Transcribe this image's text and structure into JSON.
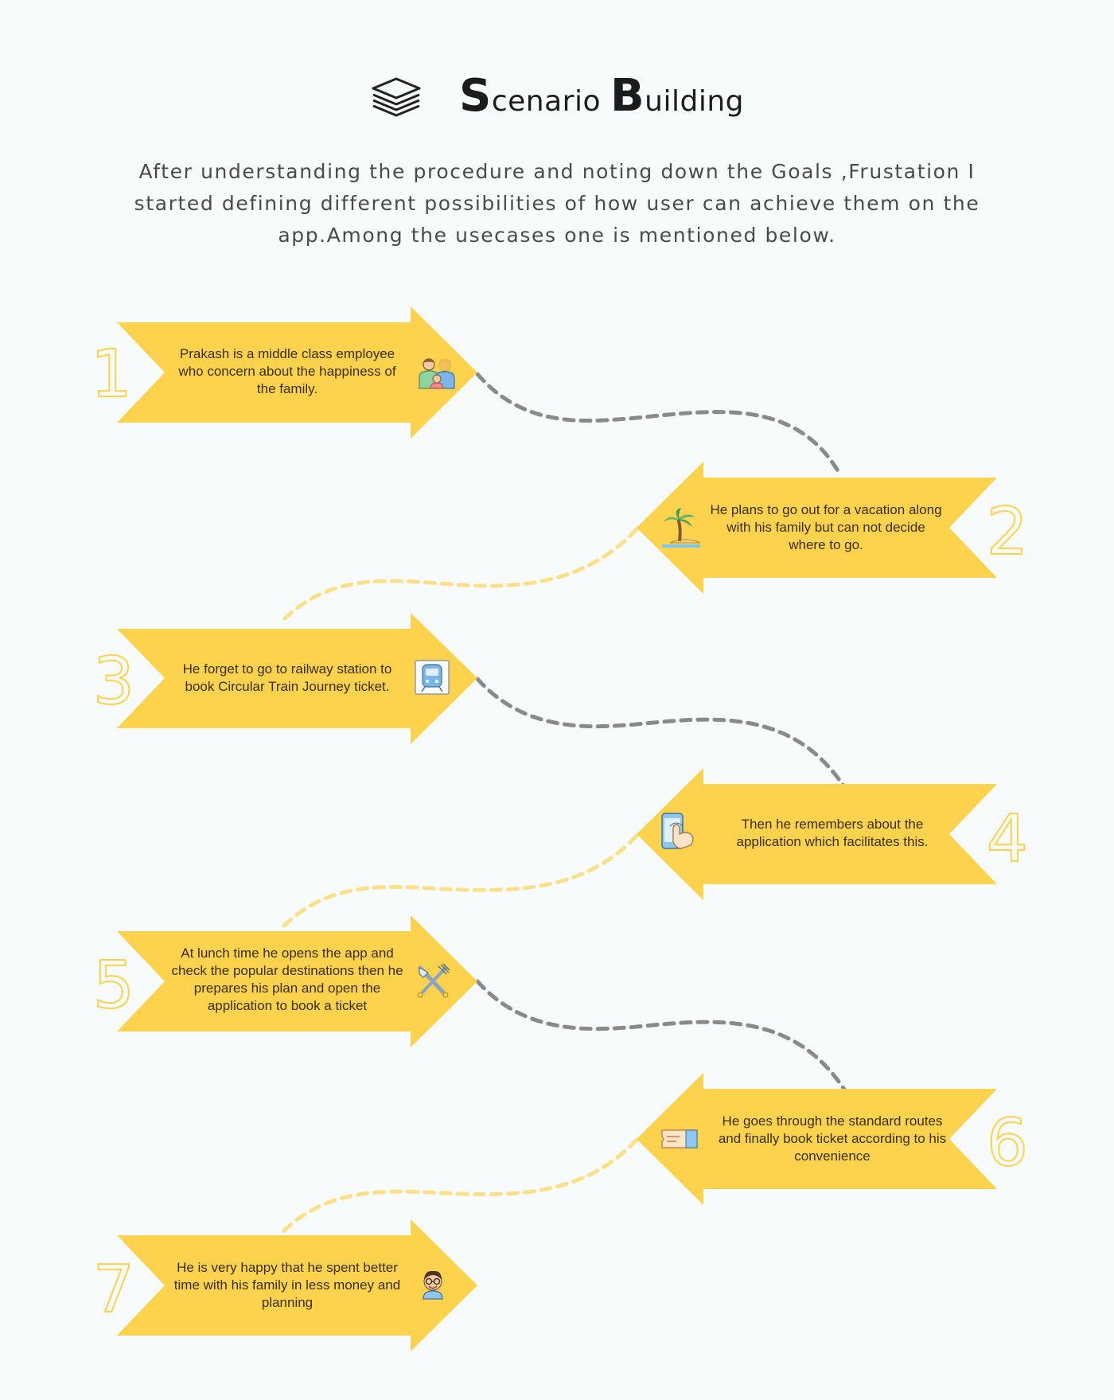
{
  "header": {
    "icon": "stacked-layers-icon",
    "title_s": "S",
    "title_rest1": "cenario ",
    "title_b": "B",
    "title_rest2": "uilding"
  },
  "intro": "After understanding the procedure and noting down the Goals ,Frustation I started defining different possibilities of how user can achieve them on the app.Among the usecases one is mentioned below.",
  "colors": {
    "arrow": "#fdd24d",
    "number": "#fdd24d",
    "gray_connector": "#8a8a8a",
    "yellow_connector": "#fbe08a",
    "background": "#f8fbfc"
  },
  "steps": [
    {
      "number": "1",
      "text": "Prakash is a middle class employee who concern about the happiness of the family.",
      "icon": "family-icon",
      "direction": "right"
    },
    {
      "number": "2",
      "text": "He plans to go out for a vacation along with his family but can not decide where to go.",
      "icon": "palm-tree-beach-icon",
      "direction": "left"
    },
    {
      "number": "3",
      "text": "He forget to go to railway station to book Circular Train Journey ticket.",
      "icon": "train-icon",
      "direction": "right"
    },
    {
      "number": "4",
      "text": "Then he remembers about the application which facilitates this.",
      "icon": "tap-phone-icon",
      "direction": "left"
    },
    {
      "number": "5",
      "text": "At lunch time he opens the app and check the popular destinations then he prepares his plan and open the application to book a ticket",
      "icon": "fork-knife-icon",
      "direction": "right"
    },
    {
      "number": "6",
      "text": "He goes through the standard routes and finally book ticket according to his convenience",
      "icon": "ticket-icon",
      "direction": "left"
    },
    {
      "number": "7",
      "text": "He is very happy that he spent better time with his family in less money and planning",
      "icon": "happy-man-icon",
      "direction": "right"
    }
  ]
}
